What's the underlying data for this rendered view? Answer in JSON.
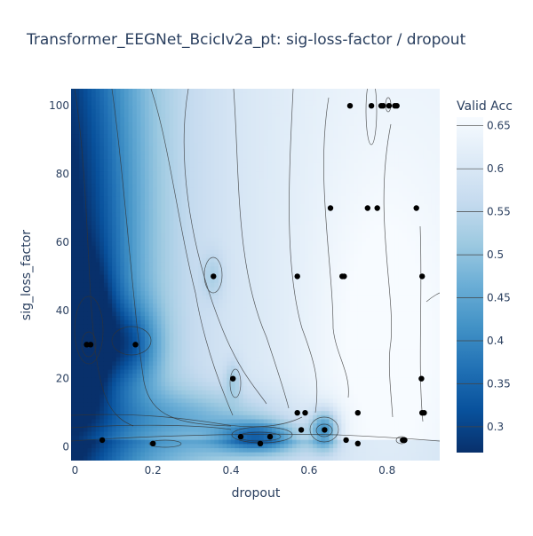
{
  "chart_data": {
    "type": "contour",
    "title": "Transformer_EEGNet_BcicIv2a_pt: sig-loss-factor / dropout",
    "xlabel": "dropout",
    "ylabel": "sig_loss_factor",
    "xlim": [
      -0.01,
      0.935
    ],
    "ylim": [
      -4,
      105
    ],
    "x_ticks": [
      0,
      0.2,
      0.4,
      0.6,
      0.8
    ],
    "x_tick_labels": [
      "0",
      "0.2",
      "0.4",
      "0.6",
      "0.8"
    ],
    "y_ticks": [
      0,
      20,
      40,
      60,
      80,
      100
    ],
    "y_tick_labels": [
      "0",
      "20",
      "40",
      "60",
      "80",
      "100"
    ],
    "colorbar": {
      "title": "Valid Acc",
      "range": [
        0.27,
        0.66
      ],
      "ticks": [
        0.3,
        0.35,
        0.4,
        0.45,
        0.5,
        0.55,
        0.6,
        0.65
      ],
      "tick_labels": [
        "0.3",
        "0.35",
        "0.4",
        "0.45",
        "0.5",
        "0.55",
        "0.6",
        "0.65"
      ],
      "colorscale": [
        "#08306b",
        "#08519c",
        "#2171b5",
        "#4292c6",
        "#6baed6",
        "#9ecae1",
        "#c6dbef",
        "#deebf7",
        "#f7fbff"
      ]
    },
    "grid": false,
    "legend": "none",
    "points": [
      {
        "x": 0.03,
        "y": 30
      },
      {
        "x": 0.04,
        "y": 30
      },
      {
        "x": 0.155,
        "y": 30
      },
      {
        "x": 0.07,
        "y": 2
      },
      {
        "x": 0.2,
        "y": 1
      },
      {
        "x": 0.355,
        "y": 50
      },
      {
        "x": 0.405,
        "y": 20
      },
      {
        "x": 0.425,
        "y": 3
      },
      {
        "x": 0.475,
        "y": 1
      },
      {
        "x": 0.5,
        "y": 3
      },
      {
        "x": 0.57,
        "y": 10
      },
      {
        "x": 0.59,
        "y": 10
      },
      {
        "x": 0.58,
        "y": 5
      },
      {
        "x": 0.57,
        "y": 50
      },
      {
        "x": 0.64,
        "y": 5
      },
      {
        "x": 0.655,
        "y": 70
      },
      {
        "x": 0.685,
        "y": 50
      },
      {
        "x": 0.69,
        "y": 50
      },
      {
        "x": 0.695,
        "y": 2
      },
      {
        "x": 0.705,
        "y": 100
      },
      {
        "x": 0.725,
        "y": 10
      },
      {
        "x": 0.725,
        "y": 1
      },
      {
        "x": 0.75,
        "y": 70
      },
      {
        "x": 0.76,
        "y": 100
      },
      {
        "x": 0.775,
        "y": 70
      },
      {
        "x": 0.785,
        "y": 100
      },
      {
        "x": 0.79,
        "y": 100
      },
      {
        "x": 0.805,
        "y": 100
      },
      {
        "x": 0.82,
        "y": 100
      },
      {
        "x": 0.825,
        "y": 100
      },
      {
        "x": 0.84,
        "y": 2
      },
      {
        "x": 0.845,
        "y": 2
      },
      {
        "x": 0.875,
        "y": 70
      },
      {
        "x": 0.89,
        "y": 50
      },
      {
        "x": 0.888,
        "y": 20
      },
      {
        "x": 0.89,
        "y": 10
      },
      {
        "x": 0.895,
        "y": 10
      }
    ]
  }
}
